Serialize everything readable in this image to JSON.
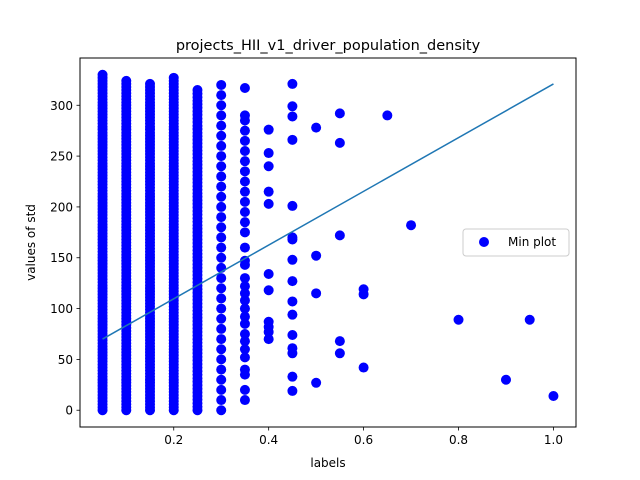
{
  "chart_data": {
    "type": "scatter",
    "title": "projects_HII_v1_driver_population_density",
    "xlabel": "labels",
    "ylabel": "values of std",
    "xlim": [
      0.0025,
      1.0475
    ],
    "ylim": [
      -16.5,
      346.5
    ],
    "xticks": [
      0.2,
      0.4,
      0.6,
      0.8,
      1.0
    ],
    "xtick_labels": [
      "0.2",
      "0.4",
      "0.6",
      "0.8",
      "1.0"
    ],
    "yticks": [
      0,
      50,
      100,
      150,
      200,
      250,
      300
    ],
    "ytick_labels": [
      "0",
      "50",
      "100",
      "150",
      "200",
      "250",
      "300"
    ],
    "grid": false,
    "legend_position": "center-right",
    "series": [
      {
        "name": "Min plot",
        "kind": "scatter",
        "color": "#0000ff",
        "columns": [
          {
            "x": 0.05,
            "y_min": 0,
            "y_max": 330,
            "step": 3
          },
          {
            "x": 0.1,
            "y_min": 0,
            "y_max": 325,
            "step": 3
          },
          {
            "x": 0.15,
            "y_min": 0,
            "y_max": 321,
            "step": 3
          },
          {
            "x": 0.2,
            "y_min": 0,
            "y_max": 328,
            "step": 3
          },
          {
            "x": 0.25,
            "y_min": 0,
            "y_max": 317,
            "step": 3.5
          }
        ],
        "points": [
          {
            "x": 0.3,
            "y": 320
          },
          {
            "x": 0.3,
            "y": 310
          },
          {
            "x": 0.3,
            "y": 300
          },
          {
            "x": 0.3,
            "y": 290
          },
          {
            "x": 0.3,
            "y": 280
          },
          {
            "x": 0.3,
            "y": 270
          },
          {
            "x": 0.3,
            "y": 260
          },
          {
            "x": 0.3,
            "y": 250
          },
          {
            "x": 0.3,
            "y": 240
          },
          {
            "x": 0.3,
            "y": 230
          },
          {
            "x": 0.3,
            "y": 220
          },
          {
            "x": 0.3,
            "y": 210
          },
          {
            "x": 0.3,
            "y": 200
          },
          {
            "x": 0.3,
            "y": 190
          },
          {
            "x": 0.3,
            "y": 180
          },
          {
            "x": 0.3,
            "y": 170
          },
          {
            "x": 0.3,
            "y": 160
          },
          {
            "x": 0.3,
            "y": 150
          },
          {
            "x": 0.3,
            "y": 140
          },
          {
            "x": 0.3,
            "y": 130
          },
          {
            "x": 0.3,
            "y": 120
          },
          {
            "x": 0.3,
            "y": 110
          },
          {
            "x": 0.3,
            "y": 100
          },
          {
            "x": 0.3,
            "y": 90
          },
          {
            "x": 0.3,
            "y": 80
          },
          {
            "x": 0.3,
            "y": 70
          },
          {
            "x": 0.3,
            "y": 60
          },
          {
            "x": 0.3,
            "y": 50
          },
          {
            "x": 0.3,
            "y": 40
          },
          {
            "x": 0.3,
            "y": 30
          },
          {
            "x": 0.3,
            "y": 20
          },
          {
            "x": 0.3,
            "y": 10
          },
          {
            "x": 0.3,
            "y": 0
          },
          {
            "x": 0.35,
            "y": 317
          },
          {
            "x": 0.35,
            "y": 290
          },
          {
            "x": 0.35,
            "y": 285
          },
          {
            "x": 0.35,
            "y": 275
          },
          {
            "x": 0.35,
            "y": 265
          },
          {
            "x": 0.35,
            "y": 255
          },
          {
            "x": 0.35,
            "y": 245
          },
          {
            "x": 0.35,
            "y": 235
          },
          {
            "x": 0.35,
            "y": 225
          },
          {
            "x": 0.35,
            "y": 215
          },
          {
            "x": 0.35,
            "y": 205
          },
          {
            "x": 0.35,
            "y": 195
          },
          {
            "x": 0.35,
            "y": 185
          },
          {
            "x": 0.35,
            "y": 175
          },
          {
            "x": 0.35,
            "y": 160
          },
          {
            "x": 0.35,
            "y": 147
          },
          {
            "x": 0.35,
            "y": 143
          },
          {
            "x": 0.35,
            "y": 130
          },
          {
            "x": 0.35,
            "y": 122
          },
          {
            "x": 0.35,
            "y": 115
          },
          {
            "x": 0.35,
            "y": 108
          },
          {
            "x": 0.35,
            "y": 100
          },
          {
            "x": 0.35,
            "y": 92
          },
          {
            "x": 0.35,
            "y": 85
          },
          {
            "x": 0.35,
            "y": 75
          },
          {
            "x": 0.35,
            "y": 68
          },
          {
            "x": 0.35,
            "y": 60
          },
          {
            "x": 0.35,
            "y": 52
          },
          {
            "x": 0.35,
            "y": 40
          },
          {
            "x": 0.35,
            "y": 35
          },
          {
            "x": 0.35,
            "y": 20
          },
          {
            "x": 0.35,
            "y": 10
          },
          {
            "x": 0.4,
            "y": 276
          },
          {
            "x": 0.4,
            "y": 253
          },
          {
            "x": 0.4,
            "y": 240
          },
          {
            "x": 0.4,
            "y": 215
          },
          {
            "x": 0.4,
            "y": 203
          },
          {
            "x": 0.4,
            "y": 134
          },
          {
            "x": 0.4,
            "y": 118
          },
          {
            "x": 0.4,
            "y": 87
          },
          {
            "x": 0.4,
            "y": 82
          },
          {
            "x": 0.4,
            "y": 77
          },
          {
            "x": 0.4,
            "y": 70
          },
          {
            "x": 0.45,
            "y": 321
          },
          {
            "x": 0.45,
            "y": 299
          },
          {
            "x": 0.45,
            "y": 289
          },
          {
            "x": 0.45,
            "y": 266
          },
          {
            "x": 0.45,
            "y": 201
          },
          {
            "x": 0.45,
            "y": 170
          },
          {
            "x": 0.45,
            "y": 168
          },
          {
            "x": 0.45,
            "y": 148
          },
          {
            "x": 0.45,
            "y": 127
          },
          {
            "x": 0.45,
            "y": 107
          },
          {
            "x": 0.45,
            "y": 94
          },
          {
            "x": 0.45,
            "y": 74
          },
          {
            "x": 0.45,
            "y": 61
          },
          {
            "x": 0.45,
            "y": 56
          },
          {
            "x": 0.45,
            "y": 33
          },
          {
            "x": 0.45,
            "y": 19
          },
          {
            "x": 0.5,
            "y": 278
          },
          {
            "x": 0.5,
            "y": 152
          },
          {
            "x": 0.5,
            "y": 115
          },
          {
            "x": 0.5,
            "y": 27
          },
          {
            "x": 0.55,
            "y": 292
          },
          {
            "x": 0.55,
            "y": 263
          },
          {
            "x": 0.55,
            "y": 172
          },
          {
            "x": 0.55,
            "y": 68
          },
          {
            "x": 0.55,
            "y": 56
          },
          {
            "x": 0.6,
            "y": 119
          },
          {
            "x": 0.6,
            "y": 114
          },
          {
            "x": 0.6,
            "y": 42
          },
          {
            "x": 0.65,
            "y": 290
          },
          {
            "x": 0.7,
            "y": 182
          },
          {
            "x": 0.8,
            "y": 89
          },
          {
            "x": 0.9,
            "y": 30
          },
          {
            "x": 0.95,
            "y": 89
          },
          {
            "x": 1.0,
            "y": 14
          }
        ]
      },
      {
        "kind": "line",
        "color": "#1f77b4",
        "x": [
          0.05,
          1.0
        ],
        "y": [
          70,
          321
        ]
      }
    ]
  }
}
